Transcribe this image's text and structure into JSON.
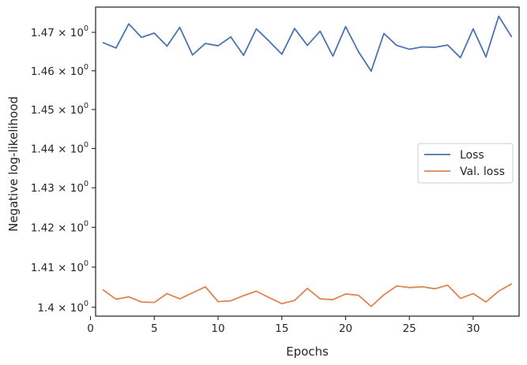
{
  "chart_data": {
    "type": "line",
    "xlabel": "Epochs",
    "ylabel": "Negative log-likelihood",
    "yscale": "log",
    "xlim": [
      0.4,
      33.6
    ],
    "ylim": [
      1.3978,
      1.4766
    ],
    "x_ticks": [
      0,
      5,
      10,
      15,
      20,
      25,
      30
    ],
    "y_ticks": [
      {
        "value": 1.4,
        "mantissa": "1.4",
        "base": "10",
        "exponent": "0"
      },
      {
        "value": 1.41,
        "mantissa": "1.41",
        "base": "10",
        "exponent": "0"
      },
      {
        "value": 1.42,
        "mantissa": "1.42",
        "base": "10",
        "exponent": "0"
      },
      {
        "value": 1.43,
        "mantissa": "1.43",
        "base": "10",
        "exponent": "0"
      },
      {
        "value": 1.44,
        "mantissa": "1.44",
        "base": "10",
        "exponent": "0"
      },
      {
        "value": 1.45,
        "mantissa": "1.45",
        "base": "10",
        "exponent": "0"
      },
      {
        "value": 1.46,
        "mantissa": "1.46",
        "base": "10",
        "exponent": "0"
      },
      {
        "value": 1.47,
        "mantissa": "1.47",
        "base": "10",
        "exponent": "0"
      }
    ],
    "times_sign": "×",
    "grid": false,
    "legend_position": "center-right",
    "x": [
      1,
      2,
      3,
      4,
      5,
      6,
      7,
      8,
      9,
      10,
      11,
      12,
      13,
      14,
      15,
      16,
      17,
      18,
      19,
      20,
      21,
      22,
      23,
      24,
      25,
      26,
      27,
      28,
      29,
      30,
      31,
      32,
      33
    ],
    "series": [
      {
        "name": "Loss",
        "color": "#4c72b0",
        "values": [
          1.4673,
          1.4659,
          1.4722,
          1.4687,
          1.4698,
          1.4664,
          1.4713,
          1.4641,
          1.4671,
          1.4665,
          1.4688,
          1.464,
          1.4709,
          1.4677,
          1.4643,
          1.471,
          1.4666,
          1.4703,
          1.4638,
          1.4715,
          1.465,
          1.4599,
          1.4697,
          1.4666,
          1.4656,
          1.4662,
          1.4661,
          1.4667,
          1.4634,
          1.4709,
          1.4636,
          1.4742,
          1.4689
        ]
      },
      {
        "name": "Val. loss",
        "color": "#dd8452",
        "values": [
          1.4043,
          1.402,
          1.4026,
          1.4013,
          1.4012,
          1.4034,
          1.4021,
          1.4036,
          1.4051,
          1.4014,
          1.4016,
          1.4029,
          1.404,
          1.4024,
          1.4009,
          1.4017,
          1.4047,
          1.4021,
          1.4019,
          1.4033,
          1.403,
          1.4002,
          1.4031,
          1.4053,
          1.4049,
          1.4051,
          1.4046,
          1.4055,
          1.4022,
          1.4034,
          1.4013,
          1.404,
          1.4058
        ]
      }
    ]
  }
}
